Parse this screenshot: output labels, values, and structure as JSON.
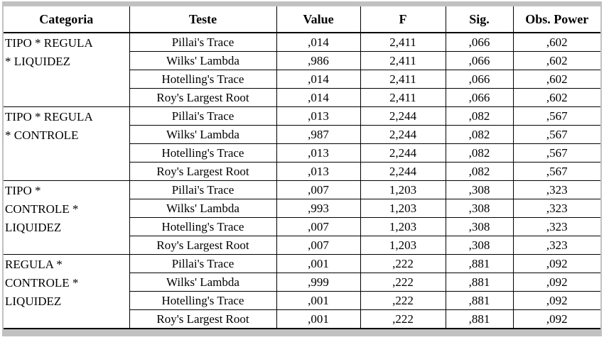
{
  "colors": {
    "frame": "#c1c1c1",
    "grid": "#000000",
    "text": "#000000",
    "background": "#ffffff"
  },
  "table": {
    "columns": [
      "Categoria",
      "Teste",
      "Value",
      "F",
      "Sig.",
      "Obs. Power"
    ],
    "groups": [
      {
        "category_lines": [
          "TIPO * REGULA",
          "* LIQUIDEZ"
        ],
        "rows": [
          [
            "Pillai's Trace",
            ",014",
            "2,411",
            ",066",
            ",602"
          ],
          [
            "Wilks' Lambda",
            ",986",
            "2,411",
            ",066",
            ",602"
          ],
          [
            "Hotelling's Trace",
            ",014",
            "2,411",
            ",066",
            ",602"
          ],
          [
            "Roy's Largest Root",
            ",014",
            "2,411",
            ",066",
            ",602"
          ]
        ]
      },
      {
        "category_lines": [
          "TIPO * REGULA",
          "* CONTROLE"
        ],
        "rows": [
          [
            "Pillai's Trace",
            ",013",
            "2,244",
            ",082",
            ",567"
          ],
          [
            "Wilks' Lambda",
            ",987",
            "2,244",
            ",082",
            ",567"
          ],
          [
            "Hotelling's Trace",
            ",013",
            "2,244",
            ",082",
            ",567"
          ],
          [
            "Roy's Largest Root",
            ",013",
            "2,244",
            ",082",
            ",567"
          ]
        ]
      },
      {
        "category_lines": [
          "TIPO *",
          "CONTROLE *",
          "LIQUIDEZ"
        ],
        "rows": [
          [
            "Pillai's Trace",
            ",007",
            "1,203",
            ",308",
            ",323"
          ],
          [
            "Wilks' Lambda",
            ",993",
            "1,203",
            ",308",
            ",323"
          ],
          [
            "Hotelling's Trace",
            ",007",
            "1,203",
            ",308",
            ",323"
          ],
          [
            "Roy's Largest Root",
            ",007",
            "1,203",
            ",308",
            ",323"
          ]
        ]
      },
      {
        "category_lines": [
          "REGULA *",
          "CONTROLE *",
          "LIQUIDEZ"
        ],
        "rows": [
          [
            "Pillai's Trace",
            ",001",
            ",222",
            ",881",
            ",092"
          ],
          [
            "Wilks' Lambda",
            ",999",
            ",222",
            ",881",
            ",092"
          ],
          [
            "Hotelling's Trace",
            ",001",
            ",222",
            ",881",
            ",092"
          ],
          [
            "Roy's Largest Root",
            ",001",
            ",222",
            ",881",
            ",092"
          ]
        ]
      }
    ]
  }
}
